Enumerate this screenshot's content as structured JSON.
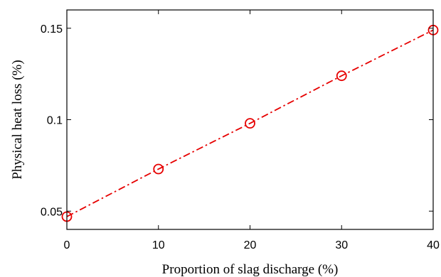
{
  "chart_data": {
    "type": "line",
    "title": "",
    "xlabel": "Proportion of slag discharge (%)",
    "ylabel": "Physical heat loss (%)",
    "xlim": [
      0,
      40
    ],
    "ylim": [
      0.04,
      0.16
    ],
    "xticks": [
      0,
      10,
      20,
      30,
      40
    ],
    "xtick_labels": [
      "0",
      "10",
      "20",
      "30",
      "40"
    ],
    "yticks": [
      0.05,
      0.1,
      0.15
    ],
    "ytick_labels": [
      "0.05",
      "0.1",
      "0.15"
    ],
    "grid": false,
    "legend": "none",
    "series": [
      {
        "x": [
          0,
          10,
          20,
          30,
          40
        ],
        "y": [
          0.047,
          0.073,
          0.098,
          0.124,
          0.149
        ],
        "color": "#e60000",
        "line_style": "dash-dot",
        "marker": "circle-open"
      }
    ]
  }
}
